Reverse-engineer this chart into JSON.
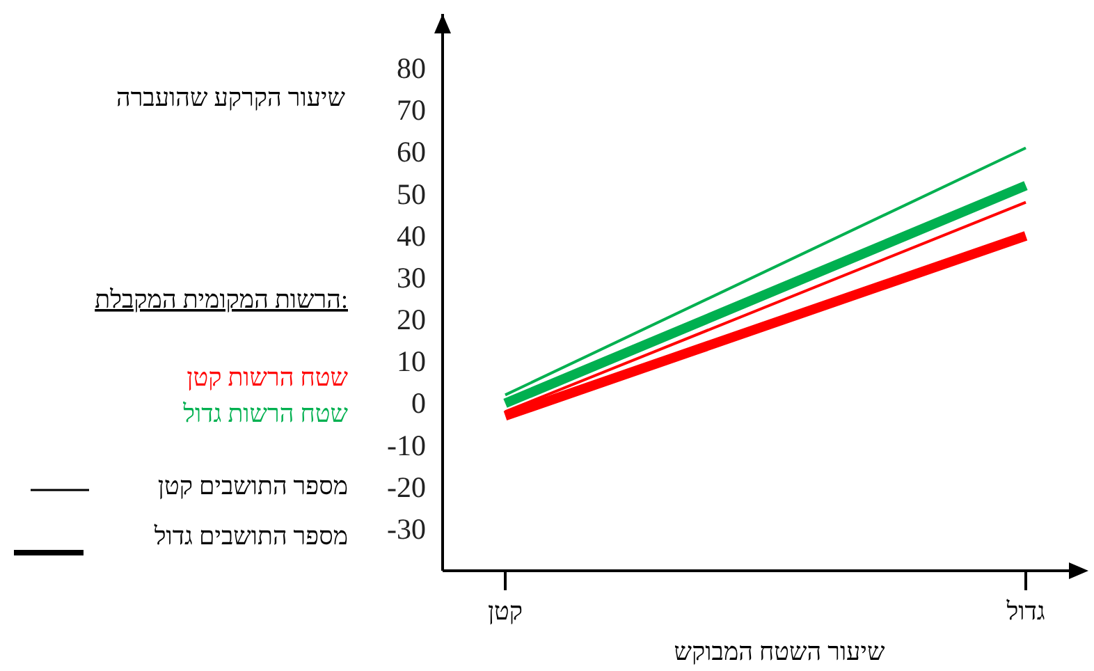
{
  "chart_data": {
    "type": "line",
    "ylabel": "שיעור הקרקע שהועברה",
    "xlabel": "שיעור השטח המבוקש",
    "legend_title": "הרשות המקומית המקבלת:",
    "annotations": [
      "שטח הרשות קטן",
      "שטח הרשות גדול",
      "מספר התושבים קטן",
      "מספר התושבים גדול"
    ],
    "categories": [
      "קטן",
      "גדול"
    ],
    "ylim": [
      -40,
      93
    ],
    "yticks": [
      80,
      70,
      60,
      50,
      40,
      30,
      20,
      10,
      0,
      -10,
      -20,
      -30
    ],
    "series": [
      {
        "color": "#ff0000",
        "values": [
          -2,
          48
        ]
      },
      {
        "color": "#ff0000",
        "values": [
          -3,
          40
        ]
      },
      {
        "color": "#00b050",
        "values": [
          2,
          61
        ]
      },
      {
        "color": "#00b050",
        "values": [
          0,
          52
        ]
      }
    ]
  }
}
